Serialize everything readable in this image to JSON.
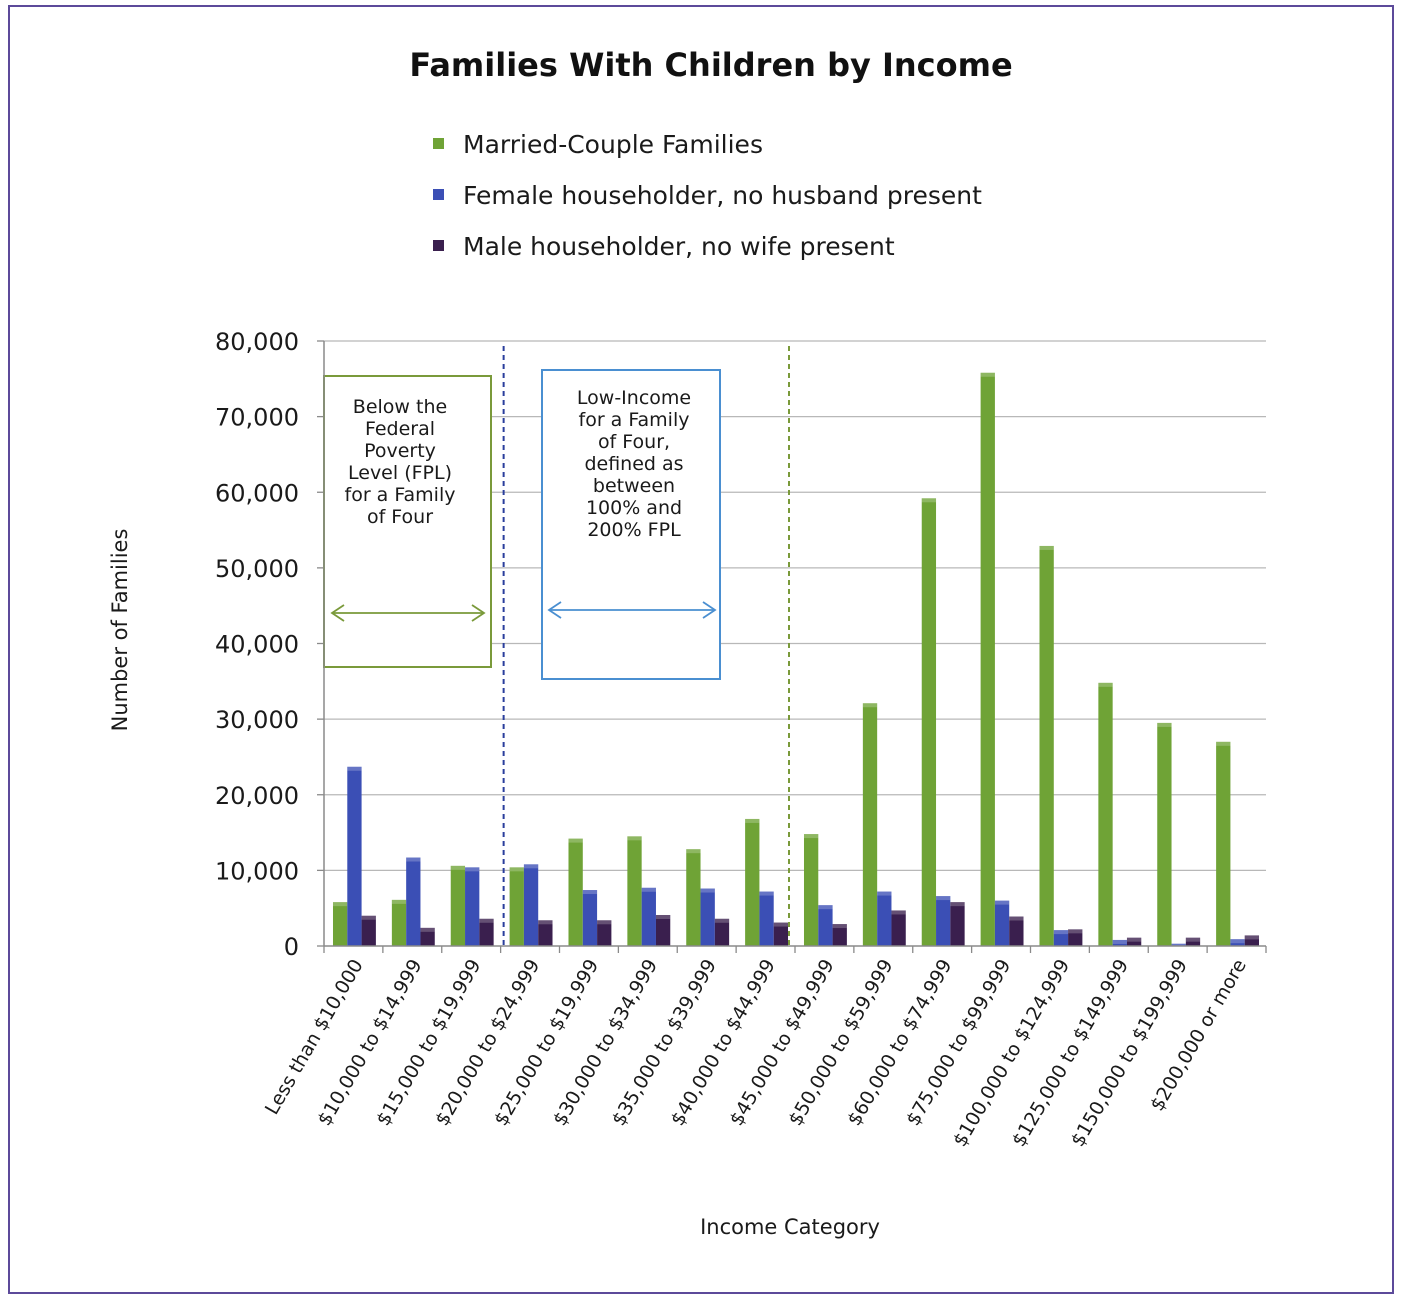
{
  "chart_data": {
    "type": "bar",
    "title": "Families With Children by Income",
    "xlabel": "Income Category",
    "ylabel": "Number of Families",
    "ylim": [
      0,
      80000
    ],
    "yticks": [
      "0",
      "10,000",
      "20,000",
      "30,000",
      "40,000",
      "50,000",
      "60,000",
      "70,000",
      "80,000"
    ],
    "grid": true,
    "legend_position": "top-center",
    "categories": [
      "Less than $10,000",
      "$10,000 to $14,999",
      "$15,000 to $19,999",
      "$20,000 to $24,999",
      "$25,000 to $19,999",
      "$30,000 to $34,999",
      "$35,000 to $39,999",
      "$40,000 to $44,999",
      "$45,000 to $49,999",
      "$50,000 to $59,999",
      "$60,000 to $74,999",
      "$75,000 to $99,999",
      "$100,000 to $124,999",
      "$125,000 to $149,999",
      "$150,000 to $199,999",
      "$200,000 or more"
    ],
    "series": [
      {
        "name": "Married-Couple Families",
        "color": "#6fa336",
        "values": [
          5800,
          6100,
          10600,
          10400,
          14200,
          14500,
          12800,
          16800,
          14800,
          32100,
          59200,
          75800,
          52900,
          34800,
          29500,
          27000
        ]
      },
      {
        "name": "Female householder, no husband present",
        "color": "#3b4fb5",
        "values": [
          23700,
          11700,
          10400,
          10800,
          7400,
          7700,
          7600,
          7200,
          5400,
          7200,
          6600,
          6000,
          2100,
          800,
          300,
          900
        ]
      },
      {
        "name": "Male householder, no wife present",
        "color": "#3a1f4e",
        "values": [
          4000,
          2400,
          3600,
          3400,
          3400,
          4100,
          3600,
          3100,
          2900,
          4700,
          5800,
          3900,
          2200,
          1100,
          1100,
          1400
        ]
      }
    ],
    "annotations": [
      {
        "name": "below-fpl-box",
        "text_lines": [
          "Below the",
          "Federal",
          "Poverty",
          "Level (FPL)",
          "for a Family",
          "of Four"
        ],
        "color": "#7a9a3a",
        "divider_after_category": "$20,000 to $24,999"
      },
      {
        "name": "low-income-box",
        "text_lines": [
          "Low-Income",
          "for a Family",
          "of Four,",
          "defined as",
          "between",
          "100% and",
          "200% FPL"
        ],
        "color": "#4a8fd1",
        "divider_after_category": "$40,000 to $44,999"
      }
    ]
  }
}
